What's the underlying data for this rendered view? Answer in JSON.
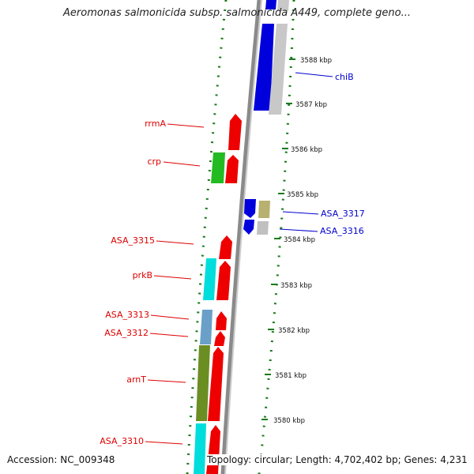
{
  "title": "Aeromonas salmonicida subsp. salmonicida A449, complete geno...",
  "accession": "Accession: NC_009348",
  "topology": "Topology: circular; Length: 4,702,402 bp; Genes: 4,231",
  "colors": {
    "forward_label": "#dd0000",
    "reverse_label": "#0000cc",
    "backbone": "#808080",
    "tick": "#1a7a1a"
  },
  "ticks": [
    {
      "label": "3588 kbp"
    },
    {
      "label": "3587 kbp"
    },
    {
      "label": "3586 kbp"
    },
    {
      "label": "3585 kbp"
    },
    {
      "label": "3584 kbp"
    },
    {
      "label": "3583 kbp"
    },
    {
      "label": "3582 kbp"
    },
    {
      "label": "3581 kbp"
    },
    {
      "label": "3580 kbp"
    }
  ],
  "gene_labels": [
    {
      "name": "chiB",
      "strand": "reverse"
    },
    {
      "name": "rrmA",
      "strand": "forward"
    },
    {
      "name": "crp",
      "strand": "forward"
    },
    {
      "name": "ASA_3317",
      "strand": "reverse"
    },
    {
      "name": "ASA_3316",
      "strand": "reverse"
    },
    {
      "name": "ASA_3315",
      "strand": "forward"
    },
    {
      "name": "prkB",
      "strand": "forward"
    },
    {
      "name": "ASA_3313",
      "strand": "forward"
    },
    {
      "name": "ASA_3312",
      "strand": "forward"
    },
    {
      "name": "arnT",
      "strand": "forward"
    },
    {
      "name": "ASA_3310",
      "strand": "forward"
    }
  ]
}
